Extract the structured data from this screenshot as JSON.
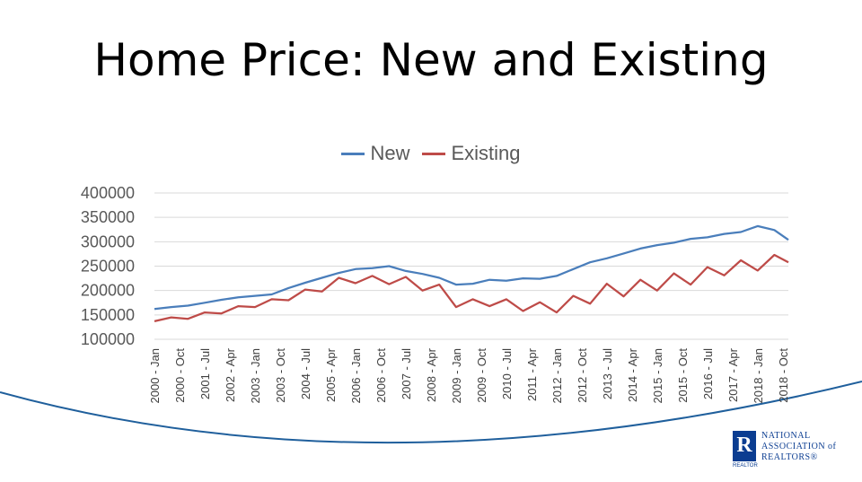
{
  "slide": {
    "title": "Home Price: New and Existing"
  },
  "logo": {
    "line1": "NATIONAL",
    "line2": "ASSOCIATION of",
    "line3": "REALTORS®",
    "mark": "R",
    "sub": "REALTOR"
  },
  "colors": {
    "new": "#4a7ebb",
    "existing": "#be4b48",
    "decor_curve": "#1f5f9c"
  },
  "chart_data": {
    "type": "line",
    "title": "",
    "xlabel": "",
    "ylabel": "",
    "ylim": [
      100000,
      400000
    ],
    "yticks": [
      400000,
      350000,
      300000,
      250000,
      200000,
      150000,
      100000
    ],
    "grid": true,
    "legend": "top",
    "x_start": "2000 - Jan",
    "x_end": "2018 - Dec",
    "xticks": [
      "2000 - Jan",
      "2000 - Oct",
      "2001 - Jul",
      "2002 - Apr",
      "2003 - Jan",
      "2003 - Oct",
      "2004 - Jul",
      "2005 - Apr",
      "2006 - Jan",
      "2006 - Oct",
      "2007 - Jul",
      "2008 - Apr",
      "2009 - Jan",
      "2009 - Oct",
      "2010 - Jul",
      "2011 - Apr",
      "2012 - Jan",
      "2012 - Oct",
      "2013 - Jul",
      "2014 - Apr",
      "2015 - Jan",
      "2015 - Oct",
      "2016 - Jul",
      "2017 - Apr",
      "2018 - Jan",
      "2018 - Oct"
    ],
    "series": [
      {
        "name": "New",
        "color": "#4a7ebb",
        "points": [
          [
            "2000 - Jan",
            162000
          ],
          [
            "2000 - Jul",
            166000
          ],
          [
            "2001 - Jan",
            169000
          ],
          [
            "2001 - Jul",
            175000
          ],
          [
            "2002 - Jan",
            181000
          ],
          [
            "2002 - Jul",
            186000
          ],
          [
            "2003 - Jan",
            189000
          ],
          [
            "2003 - Jul",
            192000
          ],
          [
            "2004 - Jan",
            205000
          ],
          [
            "2004 - Jul",
            216000
          ],
          [
            "2005 - Jan",
            226000
          ],
          [
            "2005 - Jul",
            236000
          ],
          [
            "2006 - Jan",
            244000
          ],
          [
            "2006 - Jul",
            246000
          ],
          [
            "2007 - Jan",
            250000
          ],
          [
            "2007 - Jul",
            240000
          ],
          [
            "2008 - Jan",
            234000
          ],
          [
            "2008 - Jul",
            226000
          ],
          [
            "2009 - Jan",
            212000
          ],
          [
            "2009 - Jul",
            214000
          ],
          [
            "2010 - Jan",
            222000
          ],
          [
            "2010 - Jul",
            220000
          ],
          [
            "2011 - Jan",
            225000
          ],
          [
            "2011 - Jul",
            224000
          ],
          [
            "2012 - Jan",
            230000
          ],
          [
            "2012 - Jul",
            244000
          ],
          [
            "2013 - Jan",
            258000
          ],
          [
            "2013 - Jul",
            266000
          ],
          [
            "2014 - Jan",
            276000
          ],
          [
            "2014 - Jul",
            286000
          ],
          [
            "2015 - Jan",
            293000
          ],
          [
            "2015 - Jul",
            298000
          ],
          [
            "2016 - Jan",
            306000
          ],
          [
            "2016 - Jul",
            309000
          ],
          [
            "2017 - Jan",
            316000
          ],
          [
            "2017 - Jul",
            320000
          ],
          [
            "2018 - Jan",
            332000
          ],
          [
            "2018 - Jul",
            324000
          ],
          [
            "2018 - Dec",
            304000
          ]
        ]
      },
      {
        "name": "Existing",
        "color": "#be4b48",
        "points": [
          [
            "2000 - Jan",
            137000
          ],
          [
            "2000 - Jul",
            145000
          ],
          [
            "2001 - Jan",
            142000
          ],
          [
            "2001 - Jul",
            155000
          ],
          [
            "2002 - Jan",
            153000
          ],
          [
            "2002 - Jul",
            168000
          ],
          [
            "2003 - Jan",
            166000
          ],
          [
            "2003 - Jul",
            182000
          ],
          [
            "2004 - Jan",
            180000
          ],
          [
            "2004 - Jul",
            202000
          ],
          [
            "2005 - Jan",
            198000
          ],
          [
            "2005 - Jul",
            226000
          ],
          [
            "2006 - Jan",
            215000
          ],
          [
            "2006 - Jul",
            230000
          ],
          [
            "2007 - Jan",
            213000
          ],
          [
            "2007 - Jul",
            228000
          ],
          [
            "2008 - Jan",
            200000
          ],
          [
            "2008 - Jul",
            212000
          ],
          [
            "2009 - Jan",
            166000
          ],
          [
            "2009 - Jul",
            182000
          ],
          [
            "2010 - Jan",
            168000
          ],
          [
            "2010 - Jul",
            182000
          ],
          [
            "2011 - Jan",
            158000
          ],
          [
            "2011 - Jul",
            176000
          ],
          [
            "2012 - Jan",
            155000
          ],
          [
            "2012 - Jul",
            189000
          ],
          [
            "2013 - Jan",
            173000
          ],
          [
            "2013 - Jul",
            214000
          ],
          [
            "2014 - Jan",
            188000
          ],
          [
            "2014 - Jul",
            222000
          ],
          [
            "2015 - Jan",
            200000
          ],
          [
            "2015 - Jul",
            235000
          ],
          [
            "2016 - Jan",
            212000
          ],
          [
            "2016 - Jul",
            248000
          ],
          [
            "2017 - Jan",
            231000
          ],
          [
            "2017 - Jul",
            262000
          ],
          [
            "2018 - Jan",
            241000
          ],
          [
            "2018 - Jul",
            273000
          ],
          [
            "2018 - Dec",
            258000
          ]
        ]
      }
    ]
  }
}
